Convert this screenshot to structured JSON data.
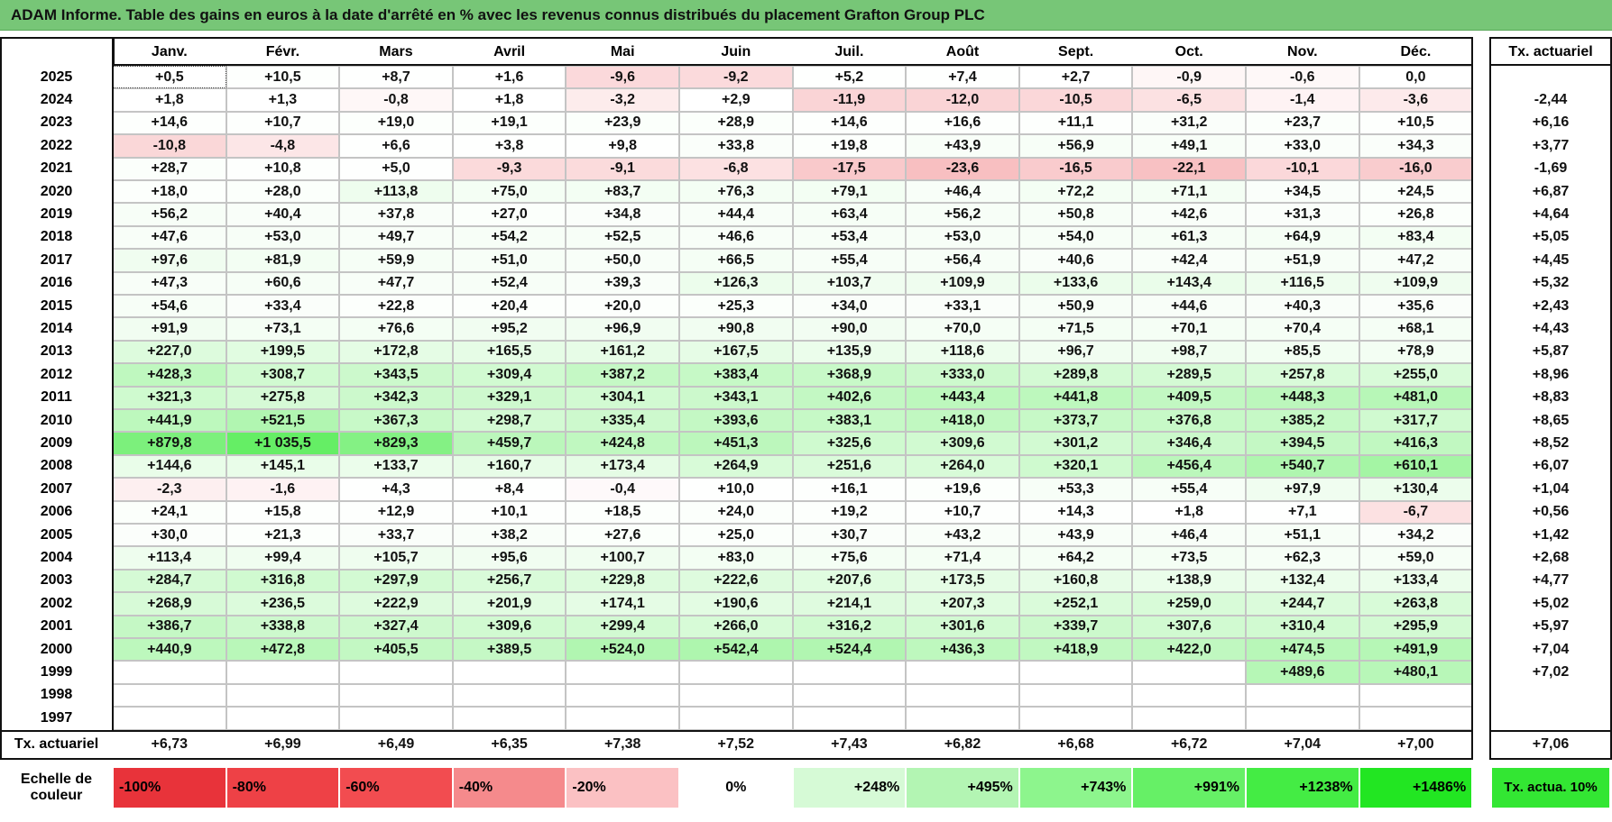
{
  "title": "ADAM Informe. Table des gains en euros à la date d'arrêté en % avec les revenus connus distribués du placement Grafton Group PLC",
  "header": {
    "months": [
      "Janv.",
      "Févr.",
      "Mars",
      "Avril",
      "Mai",
      "Juin",
      "Juil.",
      "Août",
      "Sept.",
      "Oct.",
      "Nov.",
      "Déc."
    ],
    "tx": "Tx. actuariel"
  },
  "rows": [
    {
      "year": "2025",
      "cells": [
        "+0,5",
        "+10,5",
        "+8,7",
        "+1,6",
        "-9,6",
        "-9,2",
        "+5,2",
        "+7,4",
        "+2,7",
        "-0,9",
        "-0,6",
        "0,0"
      ],
      "tx": null
    },
    {
      "year": "2024",
      "cells": [
        "+1,8",
        "+1,3",
        "-0,8",
        "+1,8",
        "-3,2",
        "+2,9",
        "-11,9",
        "-12,0",
        "-10,5",
        "-6,5",
        "-1,4",
        "-3,6"
      ],
      "tx": "-2,44"
    },
    {
      "year": "2023",
      "cells": [
        "+14,6",
        "+10,7",
        "+19,0",
        "+19,1",
        "+23,9",
        "+28,9",
        "+14,6",
        "+16,6",
        "+11,1",
        "+31,2",
        "+23,7",
        "+10,5"
      ],
      "tx": "+6,16"
    },
    {
      "year": "2022",
      "cells": [
        "-10,8",
        "-4,8",
        "+6,6",
        "+3,8",
        "+9,8",
        "+33,8",
        "+19,8",
        "+43,9",
        "+56,9",
        "+49,1",
        "+33,0",
        "+34,3"
      ],
      "tx": "+3,77"
    },
    {
      "year": "2021",
      "cells": [
        "+28,7",
        "+10,8",
        "+5,0",
        "-9,3",
        "-9,1",
        "-6,8",
        "-17,5",
        "-23,6",
        "-16,5",
        "-22,1",
        "-10,1",
        "-16,0"
      ],
      "tx": "-1,69"
    },
    {
      "year": "2020",
      "cells": [
        "+18,0",
        "+28,0",
        "+113,8",
        "+75,0",
        "+83,7",
        "+76,3",
        "+79,1",
        "+46,4",
        "+72,2",
        "+71,1",
        "+34,5",
        "+24,5"
      ],
      "tx": "+6,87"
    },
    {
      "year": "2019",
      "cells": [
        "+56,2",
        "+40,4",
        "+37,8",
        "+27,0",
        "+34,8",
        "+44,4",
        "+63,4",
        "+56,2",
        "+50,8",
        "+42,6",
        "+31,3",
        "+26,8"
      ],
      "tx": "+4,64"
    },
    {
      "year": "2018",
      "cells": [
        "+47,6",
        "+53,0",
        "+49,7",
        "+54,2",
        "+52,5",
        "+46,6",
        "+53,4",
        "+53,0",
        "+54,0",
        "+61,3",
        "+64,9",
        "+83,4"
      ],
      "tx": "+5,05"
    },
    {
      "year": "2017",
      "cells": [
        "+97,6",
        "+81,9",
        "+59,9",
        "+51,0",
        "+50,0",
        "+66,5",
        "+55,4",
        "+56,4",
        "+40,6",
        "+42,4",
        "+51,9",
        "+47,2"
      ],
      "tx": "+4,45"
    },
    {
      "year": "2016",
      "cells": [
        "+47,3",
        "+60,6",
        "+47,7",
        "+52,4",
        "+39,3",
        "+126,3",
        "+103,7",
        "+109,9",
        "+133,6",
        "+143,4",
        "+116,5",
        "+109,9"
      ],
      "tx": "+5,32"
    },
    {
      "year": "2015",
      "cells": [
        "+54,6",
        "+33,4",
        "+22,8",
        "+20,4",
        "+20,0",
        "+25,3",
        "+34,0",
        "+33,1",
        "+50,9",
        "+44,6",
        "+40,3",
        "+35,6"
      ],
      "tx": "+2,43"
    },
    {
      "year": "2014",
      "cells": [
        "+91,9",
        "+73,1",
        "+76,6",
        "+95,2",
        "+96,9",
        "+90,8",
        "+90,0",
        "+70,0",
        "+71,5",
        "+70,1",
        "+70,4",
        "+68,1"
      ],
      "tx": "+4,43"
    },
    {
      "year": "2013",
      "cells": [
        "+227,0",
        "+199,5",
        "+172,8",
        "+165,5",
        "+161,2",
        "+167,5",
        "+135,9",
        "+118,6",
        "+96,7",
        "+98,7",
        "+85,5",
        "+78,9"
      ],
      "tx": "+5,87"
    },
    {
      "year": "2012",
      "cells": [
        "+428,3",
        "+308,7",
        "+343,5",
        "+309,4",
        "+387,2",
        "+383,4",
        "+368,9",
        "+333,0",
        "+289,8",
        "+289,5",
        "+257,8",
        "+255,0"
      ],
      "tx": "+8,96"
    },
    {
      "year": "2011",
      "cells": [
        "+321,3",
        "+275,8",
        "+342,3",
        "+329,1",
        "+304,1",
        "+343,1",
        "+402,6",
        "+443,4",
        "+441,8",
        "+409,5",
        "+448,3",
        "+481,0"
      ],
      "tx": "+8,83"
    },
    {
      "year": "2010",
      "cells": [
        "+441,9",
        "+521,5",
        "+367,3",
        "+298,7",
        "+335,4",
        "+393,6",
        "+383,1",
        "+418,0",
        "+373,7",
        "+376,8",
        "+385,2",
        "+317,7"
      ],
      "tx": "+8,65"
    },
    {
      "year": "2009",
      "cells": [
        "+879,8",
        "+1 035,5",
        "+829,3",
        "+459,7",
        "+424,8",
        "+451,3",
        "+325,6",
        "+309,6",
        "+301,2",
        "+346,4",
        "+394,5",
        "+416,3"
      ],
      "tx": "+8,52"
    },
    {
      "year": "2008",
      "cells": [
        "+144,6",
        "+145,1",
        "+133,7",
        "+160,7",
        "+173,4",
        "+264,9",
        "+251,6",
        "+264,0",
        "+320,1",
        "+456,4",
        "+540,7",
        "+610,1"
      ],
      "tx": "+6,07"
    },
    {
      "year": "2007",
      "cells": [
        "-2,3",
        "-1,6",
        "+4,3",
        "+8,4",
        "-0,4",
        "+10,0",
        "+16,1",
        "+19,6",
        "+53,3",
        "+55,4",
        "+97,9",
        "+130,4"
      ],
      "tx": "+1,04"
    },
    {
      "year": "2006",
      "cells": [
        "+24,1",
        "+15,8",
        "+12,9",
        "+10,1",
        "+18,5",
        "+24,0",
        "+19,2",
        "+10,7",
        "+14,3",
        "+1,8",
        "+7,1",
        "-6,7"
      ],
      "tx": "+0,56"
    },
    {
      "year": "2005",
      "cells": [
        "+30,0",
        "+21,3",
        "+33,7",
        "+38,2",
        "+27,6",
        "+25,0",
        "+30,7",
        "+43,2",
        "+43,9",
        "+46,4",
        "+51,1",
        "+34,2"
      ],
      "tx": "+1,42"
    },
    {
      "year": "2004",
      "cells": [
        "+113,4",
        "+99,4",
        "+105,7",
        "+95,6",
        "+100,7",
        "+83,0",
        "+75,6",
        "+71,4",
        "+64,2",
        "+73,5",
        "+62,3",
        "+59,0"
      ],
      "tx": "+2,68"
    },
    {
      "year": "2003",
      "cells": [
        "+284,7",
        "+316,8",
        "+297,9",
        "+256,7",
        "+229,8",
        "+222,6",
        "+207,6",
        "+173,5",
        "+160,8",
        "+138,9",
        "+132,4",
        "+133,4"
      ],
      "tx": "+4,77"
    },
    {
      "year": "2002",
      "cells": [
        "+268,9",
        "+236,5",
        "+222,9",
        "+201,9",
        "+174,1",
        "+190,6",
        "+214,1",
        "+207,3",
        "+252,1",
        "+259,0",
        "+244,7",
        "+263,8"
      ],
      "tx": "+5,02"
    },
    {
      "year": "2001",
      "cells": [
        "+386,7",
        "+338,8",
        "+327,4",
        "+309,6",
        "+299,4",
        "+266,0",
        "+316,2",
        "+301,6",
        "+339,7",
        "+307,6",
        "+310,4",
        "+295,9"
      ],
      "tx": "+5,97"
    },
    {
      "year": "2000",
      "cells": [
        "+440,9",
        "+472,8",
        "+405,5",
        "+389,5",
        "+524,0",
        "+542,4",
        "+524,4",
        "+436,3",
        "+418,9",
        "+422,0",
        "+474,5",
        "+491,9"
      ],
      "tx": "+7,04"
    },
    {
      "year": "1999",
      "cells": [
        null,
        null,
        null,
        null,
        null,
        null,
        null,
        null,
        null,
        null,
        "+489,6",
        "+480,1"
      ],
      "tx": "+7,02"
    },
    {
      "year": "1998",
      "cells": [
        null,
        null,
        null,
        null,
        null,
        null,
        null,
        null,
        null,
        null,
        null,
        null
      ],
      "tx": null
    },
    {
      "year": "1997",
      "cells": [
        null,
        null,
        null,
        null,
        null,
        null,
        null,
        null,
        null,
        null,
        null,
        null
      ],
      "tx": null
    }
  ],
  "footer": {
    "label": "Tx. actuariel",
    "cells": [
      "+6,73",
      "+6,99",
      "+6,49",
      "+6,35",
      "+7,38",
      "+7,52",
      "+7,43",
      "+6,82",
      "+6,68",
      "+6,72",
      "+7,04",
      "+7,00"
    ],
    "tx": "+7,06"
  },
  "legend": {
    "label": "Echelle de couleur",
    "items": [
      {
        "label": "-100%",
        "color": "#e8333a"
      },
      {
        "label": "-80%",
        "color": "#ee4146"
      },
      {
        "label": "-60%",
        "color": "#f24c50"
      },
      {
        "label": "-40%",
        "color": "#f58a8c"
      },
      {
        "label": "-20%",
        "color": "#fbc1c3"
      },
      {
        "label": "0%",
        "color": "#ffffff"
      },
      {
        "label": "+248%",
        "color": "#d6fad6"
      },
      {
        "label": "+495%",
        "color": "#b3f5b3"
      },
      {
        "label": "+743%",
        "color": "#8df58d"
      },
      {
        "label": "+991%",
        "color": "#66f066"
      },
      {
        "label": "+1238%",
        "color": "#44ec44"
      },
      {
        "label": "+1486%",
        "color": "#22e622"
      }
    ],
    "tx": {
      "label": "Tx. actua. 10%",
      "color": "#33e633"
    }
  }
}
